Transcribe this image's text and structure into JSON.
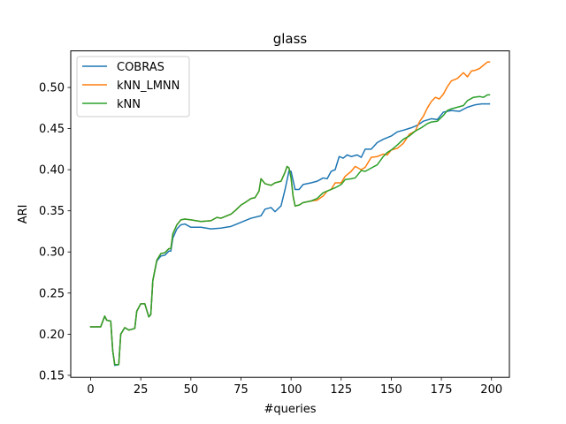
{
  "chart_data": {
    "type": "line",
    "title": "glass",
    "xlabel": "#queries",
    "ylabel": "ARI",
    "xlim": [
      -9.95,
      208.95
    ],
    "ylim": [
      0.1475,
      0.5445
    ],
    "xticks": [
      0,
      25,
      50,
      75,
      100,
      125,
      150,
      175,
      200
    ],
    "yticks": [
      0.15,
      0.2,
      0.25,
      0.3,
      0.35,
      0.4,
      0.45,
      0.5
    ],
    "ytick_labels": [
      "0.15",
      "0.20",
      "0.25",
      "0.30",
      "0.35",
      "0.40",
      "0.45",
      "0.50"
    ],
    "grid": false,
    "legend_position": "top-left",
    "series": [
      {
        "name": "COBRAS",
        "color": "#1f77b4",
        "points": [
          [
            0,
            0.209
          ],
          [
            5,
            0.209
          ],
          [
            7,
            0.222
          ],
          [
            8,
            0.217
          ],
          [
            10,
            0.216
          ],
          [
            11,
            0.18
          ],
          [
            12,
            0.162
          ],
          [
            14,
            0.163
          ],
          [
            15,
            0.2
          ],
          [
            17,
            0.208
          ],
          [
            19,
            0.205
          ],
          [
            22,
            0.207
          ],
          [
            23,
            0.228
          ],
          [
            25,
            0.237
          ],
          [
            27,
            0.237
          ],
          [
            28,
            0.229
          ],
          [
            29,
            0.221
          ],
          [
            30,
            0.224
          ],
          [
            31,
            0.265
          ],
          [
            33,
            0.289
          ],
          [
            35,
            0.295
          ],
          [
            37,
            0.296
          ],
          [
            39,
            0.301
          ],
          [
            40,
            0.301
          ],
          [
            41,
            0.317
          ],
          [
            43,
            0.328
          ],
          [
            45,
            0.333
          ],
          [
            47,
            0.334
          ],
          [
            50,
            0.33
          ],
          [
            55,
            0.33
          ],
          [
            60,
            0.328
          ],
          [
            65,
            0.329
          ],
          [
            70,
            0.331
          ],
          [
            75,
            0.336
          ],
          [
            80,
            0.341
          ],
          [
            85,
            0.344
          ],
          [
            87,
            0.352
          ],
          [
            90,
            0.354
          ],
          [
            92,
            0.349
          ],
          [
            95,
            0.356
          ],
          [
            97,
            0.376
          ],
          [
            99,
            0.399
          ],
          [
            100,
            0.398
          ],
          [
            102,
            0.376
          ],
          [
            104,
            0.376
          ],
          [
            106,
            0.382
          ],
          [
            110,
            0.384
          ],
          [
            113,
            0.386
          ],
          [
            116,
            0.39
          ],
          [
            118,
            0.389
          ],
          [
            120,
            0.398
          ],
          [
            122,
            0.4
          ],
          [
            124,
            0.416
          ],
          [
            126,
            0.414
          ],
          [
            128,
            0.418
          ],
          [
            130,
            0.416
          ],
          [
            133,
            0.418
          ],
          [
            135,
            0.415
          ],
          [
            137,
            0.425
          ],
          [
            140,
            0.425
          ],
          [
            143,
            0.433
          ],
          [
            146,
            0.437
          ],
          [
            150,
            0.441
          ],
          [
            153,
            0.446
          ],
          [
            156,
            0.448
          ],
          [
            160,
            0.451
          ],
          [
            163,
            0.454
          ],
          [
            166,
            0.459
          ],
          [
            170,
            0.462
          ],
          [
            173,
            0.461
          ],
          [
            176,
            0.47
          ],
          [
            180,
            0.472
          ],
          [
            184,
            0.471
          ],
          [
            188,
            0.476
          ],
          [
            192,
            0.479
          ],
          [
            195,
            0.48
          ],
          [
            199,
            0.48
          ]
        ]
      },
      {
        "name": "kNN_LMNN",
        "color": "#ff7f0e",
        "points": [
          [
            0,
            0.209
          ],
          [
            5,
            0.209
          ],
          [
            7,
            0.222
          ],
          [
            8,
            0.217
          ],
          [
            10,
            0.216
          ],
          [
            11,
            0.18
          ],
          [
            12,
            0.163
          ],
          [
            14,
            0.163
          ],
          [
            15,
            0.2
          ],
          [
            17,
            0.208
          ],
          [
            19,
            0.205
          ],
          [
            22,
            0.207
          ],
          [
            23,
            0.228
          ],
          [
            25,
            0.237
          ],
          [
            27,
            0.237
          ],
          [
            28,
            0.229
          ],
          [
            29,
            0.221
          ],
          [
            30,
            0.224
          ],
          [
            31,
            0.265
          ],
          [
            33,
            0.29
          ],
          [
            35,
            0.298
          ],
          [
            37,
            0.299
          ],
          [
            39,
            0.304
          ],
          [
            40,
            0.304
          ],
          [
            41,
            0.322
          ],
          [
            43,
            0.333
          ],
          [
            45,
            0.339
          ],
          [
            47,
            0.34
          ],
          [
            50,
            0.339
          ],
          [
            55,
            0.337
          ],
          [
            60,
            0.338
          ],
          [
            63,
            0.342
          ],
          [
            65,
            0.341
          ],
          [
            70,
            0.346
          ],
          [
            72,
            0.35
          ],
          [
            75,
            0.357
          ],
          [
            77,
            0.36
          ],
          [
            80,
            0.365
          ],
          [
            82,
            0.366
          ],
          [
            84,
            0.374
          ],
          [
            85,
            0.389
          ],
          [
            87,
            0.383
          ],
          [
            90,
            0.381
          ],
          [
            92,
            0.384
          ],
          [
            95,
            0.386
          ],
          [
            97,
            0.397
          ],
          [
            98,
            0.404
          ],
          [
            99,
            0.402
          ],
          [
            100,
            0.39
          ],
          [
            101,
            0.368
          ],
          [
            102,
            0.356
          ],
          [
            104,
            0.357
          ],
          [
            106,
            0.36
          ],
          [
            110,
            0.362
          ],
          [
            113,
            0.363
          ],
          [
            116,
            0.368
          ],
          [
            118,
            0.374
          ],
          [
            120,
            0.376
          ],
          [
            122,
            0.384
          ],
          [
            125,
            0.384
          ],
          [
            127,
            0.392
          ],
          [
            130,
            0.398
          ],
          [
            132,
            0.404
          ],
          [
            135,
            0.4
          ],
          [
            137,
            0.403
          ],
          [
            140,
            0.415
          ],
          [
            143,
            0.416
          ],
          [
            146,
            0.419
          ],
          [
            148,
            0.418
          ],
          [
            150,
            0.424
          ],
          [
            153,
            0.426
          ],
          [
            156,
            0.432
          ],
          [
            159,
            0.443
          ],
          [
            162,
            0.447
          ],
          [
            164,
            0.458
          ],
          [
            166,
            0.465
          ],
          [
            168,
            0.475
          ],
          [
            170,
            0.483
          ],
          [
            172,
            0.488
          ],
          [
            174,
            0.486
          ],
          [
            176,
            0.492
          ],
          [
            178,
            0.501
          ],
          [
            180,
            0.508
          ],
          [
            183,
            0.511
          ],
          [
            186,
            0.518
          ],
          [
            188,
            0.513
          ],
          [
            190,
            0.52
          ],
          [
            192,
            0.521
          ],
          [
            194,
            0.523
          ],
          [
            196,
            0.527
          ],
          [
            198,
            0.531
          ],
          [
            199,
            0.531
          ]
        ]
      },
      {
        "name": "kNN",
        "color": "#2ca02c",
        "points": [
          [
            0,
            0.209
          ],
          [
            5,
            0.209
          ],
          [
            7,
            0.222
          ],
          [
            8,
            0.217
          ],
          [
            10,
            0.216
          ],
          [
            11,
            0.18
          ],
          [
            12,
            0.163
          ],
          [
            14,
            0.163
          ],
          [
            15,
            0.2
          ],
          [
            17,
            0.208
          ],
          [
            19,
            0.205
          ],
          [
            22,
            0.207
          ],
          [
            23,
            0.228
          ],
          [
            25,
            0.237
          ],
          [
            27,
            0.237
          ],
          [
            28,
            0.229
          ],
          [
            29,
            0.221
          ],
          [
            30,
            0.224
          ],
          [
            31,
            0.265
          ],
          [
            33,
            0.29
          ],
          [
            35,
            0.298
          ],
          [
            37,
            0.299
          ],
          [
            39,
            0.304
          ],
          [
            40,
            0.304
          ],
          [
            41,
            0.322
          ],
          [
            43,
            0.333
          ],
          [
            45,
            0.339
          ],
          [
            47,
            0.34
          ],
          [
            50,
            0.339
          ],
          [
            55,
            0.337
          ],
          [
            60,
            0.338
          ],
          [
            63,
            0.342
          ],
          [
            65,
            0.341
          ],
          [
            70,
            0.346
          ],
          [
            72,
            0.35
          ],
          [
            75,
            0.357
          ],
          [
            77,
            0.36
          ],
          [
            80,
            0.365
          ],
          [
            82,
            0.366
          ],
          [
            84,
            0.374
          ],
          [
            85,
            0.389
          ],
          [
            87,
            0.383
          ],
          [
            90,
            0.381
          ],
          [
            92,
            0.384
          ],
          [
            95,
            0.386
          ],
          [
            97,
            0.397
          ],
          [
            98,
            0.404
          ],
          [
            99,
            0.402
          ],
          [
            100,
            0.39
          ],
          [
            101,
            0.368
          ],
          [
            102,
            0.356
          ],
          [
            104,
            0.357
          ],
          [
            106,
            0.36
          ],
          [
            110,
            0.362
          ],
          [
            113,
            0.365
          ],
          [
            116,
            0.372
          ],
          [
            118,
            0.374
          ],
          [
            120,
            0.376
          ],
          [
            122,
            0.378
          ],
          [
            125,
            0.382
          ],
          [
            127,
            0.388
          ],
          [
            130,
            0.389
          ],
          [
            132,
            0.39
          ],
          [
            135,
            0.399
          ],
          [
            137,
            0.398
          ],
          [
            140,
            0.402
          ],
          [
            143,
            0.406
          ],
          [
            146,
            0.416
          ],
          [
            148,
            0.421
          ],
          [
            150,
            0.424
          ],
          [
            153,
            0.43
          ],
          [
            156,
            0.437
          ],
          [
            159,
            0.441
          ],
          [
            162,
            0.447
          ],
          [
            165,
            0.451
          ],
          [
            168,
            0.456
          ],
          [
            170,
            0.458
          ],
          [
            173,
            0.459
          ],
          [
            176,
            0.466
          ],
          [
            178,
            0.472
          ],
          [
            180,
            0.474
          ],
          [
            183,
            0.476
          ],
          [
            186,
            0.478
          ],
          [
            188,
            0.484
          ],
          [
            191,
            0.488
          ],
          [
            194,
            0.489
          ],
          [
            196,
            0.488
          ],
          [
            198,
            0.491
          ],
          [
            199,
            0.491
          ]
        ]
      }
    ]
  }
}
